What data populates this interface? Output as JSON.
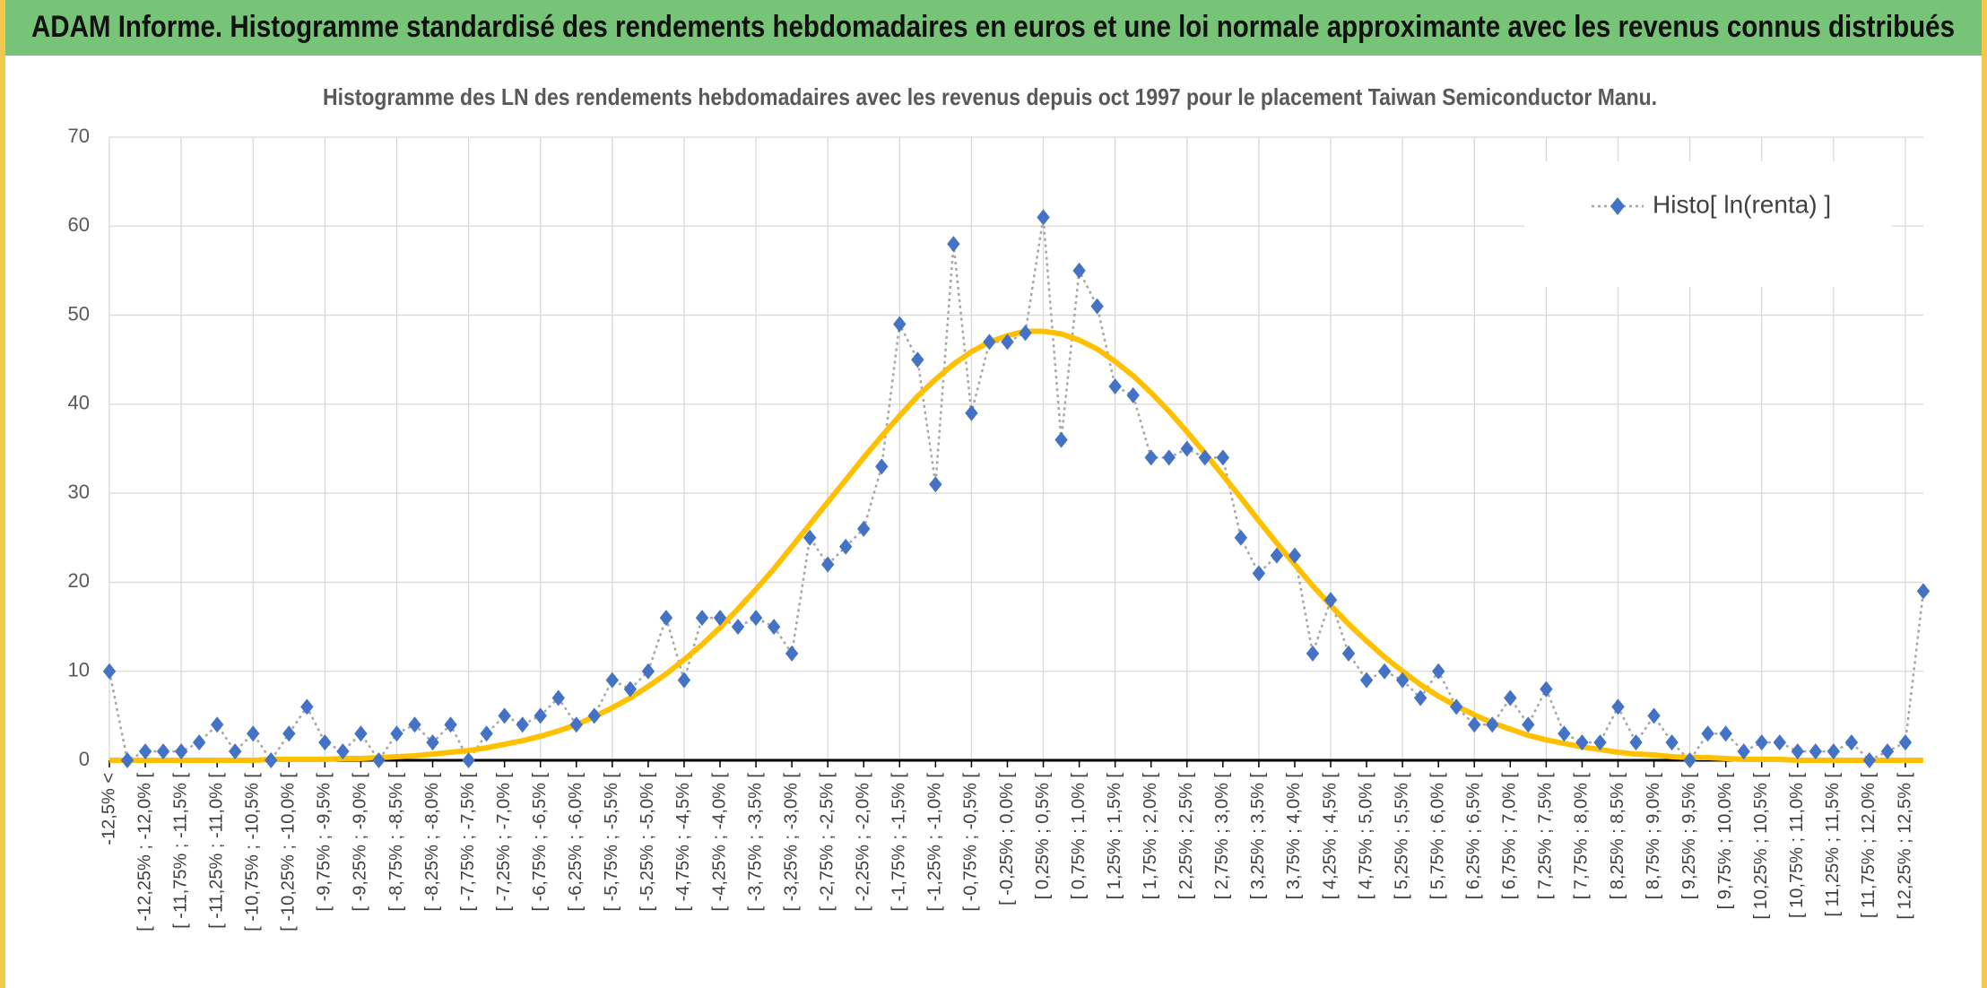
{
  "header": {
    "title": "ADAM Informe. Histogramme standardisé des rendements hebdomadaires en euros et une loi normale approximante avec les revenus connus distribués"
  },
  "chart_data": {
    "type": "line",
    "title": "Histogramme des LN des rendements hebdomadaires avec les revenus depuis oct 1997 pour le placement Taiwan Semiconductor Manu.",
    "categories": [
      "-12,5% <",
      null,
      "[ -12,25% ; -12,0% [",
      null,
      "[ -11,75% ; -11,5% [",
      null,
      "[ -11,25% ; -11,0% [",
      null,
      "[ -10,75% ; -10,5% [",
      null,
      "[ -10,25% ; -10,0% [",
      null,
      "[ -9,75% ; -9,5% [",
      null,
      "[ -9,25% ; -9,0% [",
      null,
      "[ -8,75% ; -8,5% [",
      null,
      "[ -8,25% ; -8,0% [",
      null,
      "[ -7,75% ; -7,5% [",
      null,
      "[ -7,25% ; -7,0% [",
      null,
      "[ -6,75% ; -6,5% [",
      null,
      "[ -6,25% ; -6,0% [",
      null,
      "[ -5,75% ; -5,5% [",
      null,
      "[ -5,25% ; -5,0% [",
      null,
      "[ -4,75% ; -4,5% [",
      null,
      "[ -4,25% ; -4,0% [",
      null,
      "[ -3,75% ; -3,5% [",
      null,
      "[ -3,25% ; -3,0% [",
      null,
      "[ -2,75% ; -2,5% [",
      null,
      "[ -2,25% ; -2,0% [",
      null,
      "[ -1,75% ; -1,5% [",
      null,
      "[ -1,25% ; -1,0% [",
      null,
      "[ -0,75% ; -0,5% [",
      null,
      "[ -0,25% ; 0,0% [",
      null,
      "[ 0,25% ; 0,5% [",
      null,
      "[ 0,75% ; 1,0% [",
      null,
      "[ 1,25% ; 1,5% [",
      null,
      "[ 1,75% ; 2,0% [",
      null,
      "[ 2,25% ; 2,5% [",
      null,
      "[ 2,75% ; 3,0% [",
      null,
      "[ 3,25% ; 3,5% [",
      null,
      "[ 3,75% ; 4,0% [",
      null,
      "[ 4,25% ; 4,5% [",
      null,
      "[ 4,75% ; 5,0% [",
      null,
      "[ 5,25% ; 5,5% [",
      null,
      "[ 5,75% ; 6,0% [",
      null,
      "[ 6,25% ; 6,5% [",
      null,
      "[ 6,75% ; 7,0% [",
      null,
      "[ 7,25% ; 7,5% [",
      null,
      "[ 7,75% ; 8,0% [",
      null,
      "[ 8,25% ; 8,5% [",
      null,
      "[ 8,75% ; 9,0% [",
      null,
      "[ 9,25% ; 9,5% [",
      null,
      "[ 9,75% ; 10,0% [",
      null,
      "[ 10,25% ; 10,5% [",
      null,
      "[ 10,75% ; 11,0% [",
      null,
      "[ 11,25% ; 11,5% [",
      null,
      "[ 11,75% ; 12,0% [",
      null,
      "[ 12,25% ; 12,5% [",
      null
    ],
    "series": [
      {
        "name": "Histo[ ln(renta) ]",
        "color": "#4472c4",
        "values": [
          10,
          0,
          1,
          1,
          1,
          2,
          4,
          1,
          3,
          0,
          3,
          6,
          2,
          1,
          3,
          0,
          3,
          4,
          2,
          4,
          0,
          3,
          5,
          4,
          5,
          7,
          4,
          5,
          9,
          8,
          10,
          16,
          9,
          16,
          16,
          15,
          16,
          15,
          12,
          25,
          22,
          24,
          26,
          33,
          49,
          45,
          31,
          58,
          39,
          47,
          47,
          48,
          61,
          36,
          55,
          51,
          42,
          41,
          34,
          34,
          35,
          34,
          34,
          25,
          21,
          23,
          23,
          12,
          18,
          12,
          9,
          10,
          9,
          7,
          10,
          6,
          4,
          4,
          7,
          4,
          8,
          3,
          2,
          2,
          6,
          2,
          5,
          2,
          0,
          3,
          3,
          1,
          2,
          2,
          1,
          1,
          1,
          2,
          0,
          1,
          2,
          19
        ]
      },
      {
        "color": "#ffc000",
        "values": [
          0,
          0,
          0,
          0,
          0,
          0,
          0,
          0,
          0,
          0.1,
          0.1,
          0.1,
          0.1,
          0.2,
          0.2,
          0.3,
          0.4,
          0.5,
          0.7,
          0.9,
          1.1,
          1.4,
          1.8,
          2.2,
          2.7,
          3.3,
          4.0,
          4.9,
          5.9,
          7.0,
          8.3,
          9.7,
          11.3,
          13.0,
          14.9,
          17.0,
          19.2,
          21.5,
          24.0,
          26.5,
          29.0,
          31.5,
          34.0,
          36.4,
          38.7,
          40.9,
          42.8,
          44.5,
          45.9,
          47.0,
          47.7,
          48.2,
          48.2,
          47.9,
          47.2,
          46.2,
          44.8,
          43.2,
          41.3,
          39.2,
          36.9,
          34.5,
          32.0,
          29.5,
          26.9,
          24.4,
          22.0,
          19.6,
          17.4,
          15.3,
          13.4,
          11.6,
          10.0,
          8.5,
          7.2,
          6.1,
          5.1,
          4.2,
          3.5,
          2.8,
          2.3,
          1.9,
          1.5,
          1.2,
          0.9,
          0.7,
          0.6,
          0.4,
          0.3,
          0.3,
          0.2,
          0.1,
          0.1,
          0.1,
          0,
          0,
          0,
          0,
          0,
          0,
          0,
          0
        ]
      }
    ],
    "ylim": [
      0,
      70
    ],
    "yticks": [
      0,
      10,
      20,
      30,
      40,
      50,
      60,
      70
    ],
    "grid": true,
    "legend": "top-right"
  }
}
